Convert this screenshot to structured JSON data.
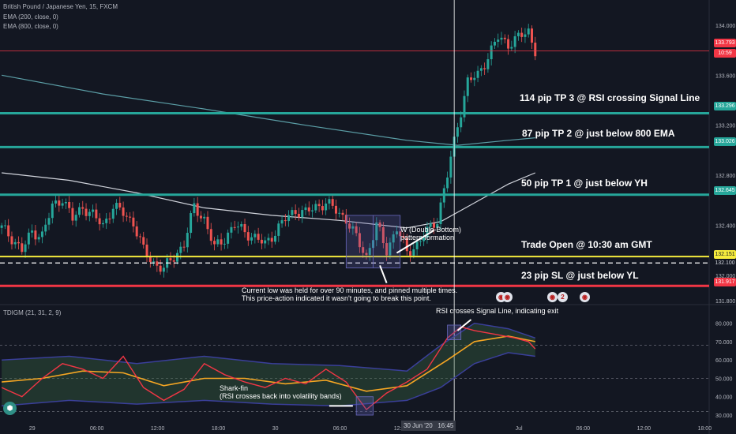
{
  "header": {
    "symbol_line": "British Pound / Japanese Yen, 15, FXCM",
    "ema1": "EMA (200, close, 0)",
    "ema2": "EMA (800, close, 0)",
    "indicator": "TDIGM (21, 31, 2, 9)"
  },
  "colors": {
    "background": "#131722",
    "up": "#26a69a",
    "down": "#ef5350",
    "ema200": "#d1d4dc",
    "ema800": "#5b9ea6",
    "tp_line": "#26a69a",
    "sl_line": "#f23645",
    "entry_line": "#f5eb3d",
    "price_line": "#f23645",
    "rsi": "#f23645",
    "signal": "#f5a623",
    "band": "#3a3f9a"
  },
  "price_tags": {
    "last": "133.793",
    "countdown": "10:59",
    "tp3": "133.296",
    "tp2": "133.026",
    "tp1": "132.645",
    "entry": "132.151",
    "low": "132.100",
    "sl": "131.917"
  },
  "annotations": {
    "tp3": "114 pip TP 3 @ RSI crossing Signal Line",
    "tp2": "87 pip TP 2 @ just below 800 EMA",
    "tp1": "50 pip TP 1 @ just below YH",
    "entry": "Trade Open @ 10:30 am GMT",
    "sl": "23 pip SL @ just below YL",
    "w_pattern_1": "W (Double-Bottom)",
    "w_pattern_2": "pattern formation",
    "low_note_1": "Current low was held for over 90 minutes, and pinned multiple times.",
    "low_note_2": "This price-action indicated it wasn't going to break this point.",
    "rsi_exit": "RSI crosses Signal Line, indicating exit",
    "shark_1": "Shark-fin",
    "shark_2": "(RSI crosses back into volatility bands)"
  },
  "crosshair_label": "30 Jun '20   16:45",
  "chart_data": [
    {
      "type": "candlestick",
      "title": "British Pound / Japanese Yen, 15, FXCM",
      "y_ticks": [
        "134.000",
        "133.600",
        "133.200",
        "132.800",
        "132.400",
        "132.000",
        "131.800"
      ],
      "ylim": [
        131.78,
        134.15
      ],
      "x_ticks": [
        "29",
        "06:00",
        "12:00",
        "18:00",
        "30",
        "06:00",
        "12:00",
        "Jul",
        "06:00",
        "12:00",
        "18:00"
      ],
      "levels": [
        {
          "name": "TP 3",
          "price": 133.296
        },
        {
          "name": "TP 2",
          "price": 133.026
        },
        {
          "name": "TP 1",
          "price": 132.645
        },
        {
          "name": "Entry",
          "price": 132.151
        },
        {
          "name": "Low",
          "price": 132.1
        },
        {
          "name": "SL",
          "price": 131.917
        },
        {
          "name": "Last",
          "price": 133.793
        }
      ],
      "close_path": [
        [
          0,
          132.38
        ],
        [
          3,
          132.3
        ],
        [
          6,
          132.2
        ],
        [
          9,
          132.35
        ],
        [
          12,
          132.32
        ],
        [
          15,
          132.55
        ],
        [
          18,
          132.62
        ],
        [
          21,
          132.45
        ],
        [
          24,
          132.55
        ],
        [
          27,
          132.48
        ],
        [
          30,
          132.4
        ],
        [
          33,
          132.55
        ],
        [
          36,
          132.5
        ],
        [
          39,
          132.42
        ],
        [
          42,
          132.2
        ],
        [
          45,
          132.1
        ],
        [
          48,
          132.05
        ],
        [
          51,
          132.15
        ],
        [
          54,
          132.25
        ],
        [
          57,
          132.55
        ],
        [
          60,
          132.45
        ],
        [
          63,
          132.22
        ],
        [
          66,
          132.3
        ],
        [
          69,
          132.4
        ],
        [
          72,
          132.35
        ],
        [
          75,
          132.3
        ],
        [
          78,
          132.25
        ],
        [
          81,
          132.35
        ],
        [
          84,
          132.45
        ],
        [
          87,
          132.52
        ],
        [
          90,
          132.5
        ],
        [
          93,
          132.55
        ],
        [
          96,
          132.58
        ],
        [
          99,
          132.52
        ],
        [
          102,
          132.45
        ],
        [
          105,
          132.3
        ],
        [
          108,
          132.15
        ],
        [
          111,
          132.4
        ],
        [
          114,
          132.2
        ],
        [
          117,
          132.38
        ],
        [
          120,
          132.18
        ],
        [
          123,
          132.25
        ],
        [
          126,
          132.35
        ],
        [
          129,
          132.45
        ],
        [
          132,
          132.8
        ],
        [
          135,
          133.2
        ],
        [
          138,
          133.55
        ],
        [
          141,
          133.6
        ],
        [
          144,
          133.75
        ],
        [
          147,
          133.9
        ],
        [
          150,
          133.85
        ],
        [
          153,
          133.9
        ],
        [
          156,
          133.95
        ],
        [
          158,
          133.8
        ]
      ],
      "ema200": [
        [
          0,
          132.82
        ],
        [
          20,
          132.76
        ],
        [
          40,
          132.66
        ],
        [
          60,
          132.54
        ],
        [
          80,
          132.48
        ],
        [
          100,
          132.44
        ],
        [
          120,
          132.38
        ],
        [
          130,
          132.43
        ],
        [
          140,
          132.58
        ],
        [
          150,
          132.73
        ],
        [
          158,
          132.82
        ]
      ],
      "ema800": [
        [
          0,
          133.6
        ],
        [
          30,
          133.45
        ],
        [
          60,
          133.33
        ],
        [
          90,
          133.2
        ],
        [
          120,
          133.08
        ],
        [
          135,
          133.04
        ],
        [
          150,
          133.08
        ],
        [
          158,
          133.1
        ]
      ]
    },
    {
      "type": "line",
      "title": "TDIGM (21, 31, 2, 9)",
      "y_ticks": [
        "80.000",
        "70.000",
        "60.000",
        "50.000",
        "40.000",
        "30.000"
      ],
      "ylim": [
        27,
        85
      ],
      "series": [
        {
          "key": "rsi",
          "values": [
            [
              0,
              45
            ],
            [
              6,
              40
            ],
            [
              12,
              50
            ],
            [
              18,
              58
            ],
            [
              24,
              55
            ],
            [
              30,
              50
            ],
            [
              36,
              62
            ],
            [
              42,
              45
            ],
            [
              48,
              38
            ],
            [
              54,
              44
            ],
            [
              60,
              58
            ],
            [
              66,
              52
            ],
            [
              72,
              48
            ],
            [
              78,
              45
            ],
            [
              84,
              50
            ],
            [
              90,
              47
            ],
            [
              96,
              55
            ],
            [
              102,
              48
            ],
            [
              108,
              33
            ],
            [
              114,
              42
            ],
            [
              120,
              48
            ],
            [
              126,
              55
            ],
            [
              132,
              72
            ],
            [
              136,
              78
            ],
            [
              140,
              76
            ],
            [
              146,
              74
            ],
            [
              152,
              72
            ],
            [
              156,
              70
            ],
            [
              158,
              66
            ]
          ]
        },
        {
          "key": "signal",
          "values": [
            [
              0,
              48
            ],
            [
              12,
              50
            ],
            [
              24,
              54
            ],
            [
              36,
              53
            ],
            [
              48,
              46
            ],
            [
              60,
              50
            ],
            [
              72,
              50
            ],
            [
              84,
              47
            ],
            [
              96,
              49
            ],
            [
              108,
              43
            ],
            [
              120,
              46
            ],
            [
              132,
              60
            ],
            [
              140,
              70
            ],
            [
              150,
              73
            ],
            [
              158,
              70
            ]
          ]
        },
        {
          "key": "upper_band",
          "values": [
            [
              0,
              60
            ],
            [
              20,
              62
            ],
            [
              40,
              58
            ],
            [
              60,
              62
            ],
            [
              80,
              58
            ],
            [
              100,
              57
            ],
            [
              120,
              54
            ],
            [
              130,
              68
            ],
            [
              140,
              80
            ],
            [
              150,
              77
            ],
            [
              158,
              72
            ]
          ]
        },
        {
          "key": "lower_band",
          "values": [
            [
              0,
              35
            ],
            [
              20,
              38
            ],
            [
              40,
              36
            ],
            [
              60,
              38
            ],
            [
              80,
              36
            ],
            [
              100,
              35
            ],
            [
              120,
              38
            ],
            [
              130,
              45
            ],
            [
              140,
              58
            ],
            [
              150,
              64
            ],
            [
              158,
              62
            ]
          ]
        }
      ]
    }
  ]
}
